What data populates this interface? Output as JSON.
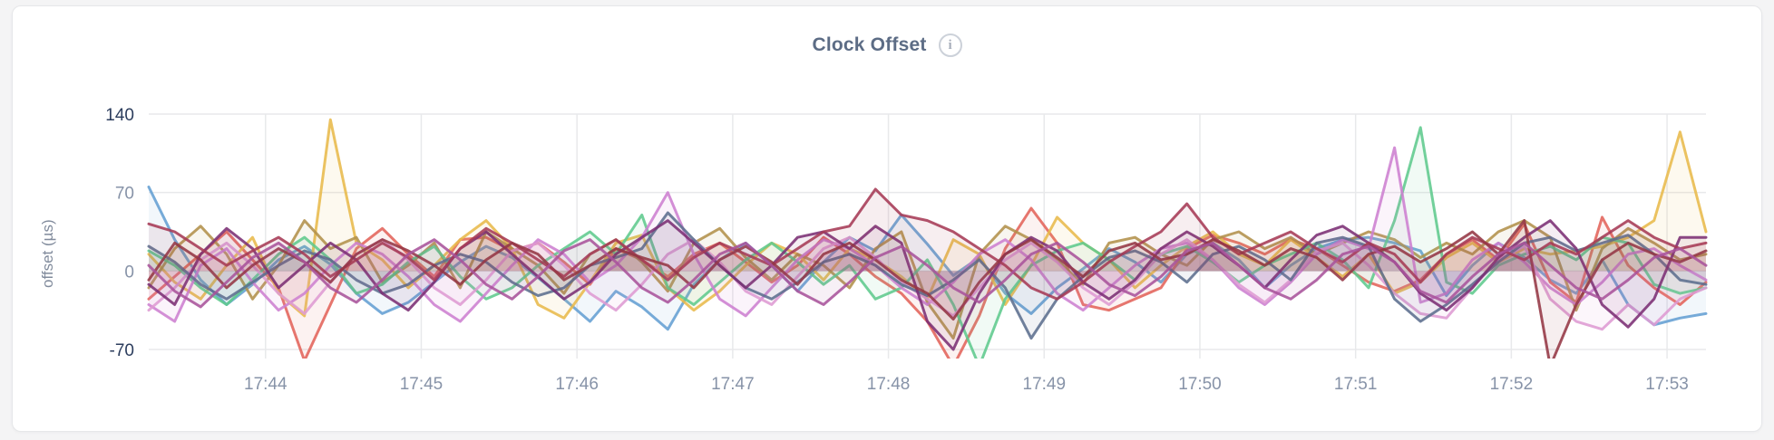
{
  "header": {
    "title": "Clock Offset",
    "info_icon_glyph": "i"
  },
  "style": {
    "accent_title_color": "#5c6c85",
    "grid_color": "#e8e9eb",
    "tick_strong_color": "#2c3d5d",
    "tick_muted_color": "#8793a8",
    "fill_opacity": 0.085,
    "line_opacity": 0.88,
    "line_width": 3
  },
  "chart_data": {
    "type": "line",
    "title": "Clock Offset",
    "xlabel": "",
    "ylabel": "offset (µs)",
    "ylim": [
      -70,
      140
    ],
    "y_ticks": [
      140,
      70,
      0,
      -70
    ],
    "x_ticks": [
      "17:44",
      "17:45",
      "17:46",
      "17:47",
      "17:48",
      "17:49",
      "17:50",
      "17:51",
      "17:52",
      "17:53"
    ],
    "x_start": "17:43:15",
    "x_end": "17:53:15",
    "sample_interval_seconds": 10,
    "grid": true,
    "legend_position": "none",
    "series": [
      {
        "name": "blue",
        "color": "#649fd3",
        "values": [
          75,
          28,
          -8,
          -30,
          -12,
          10,
          22,
          6,
          -20,
          -38,
          -28,
          -10,
          8,
          22,
          12,
          -6,
          -25,
          -45,
          -18,
          -32,
          -52,
          -12,
          10,
          25,
          5,
          -18,
          8,
          30,
          18,
          50,
          24,
          -4,
          12,
          -20,
          -38,
          -15,
          2,
          20,
          8,
          -10,
          15,
          25,
          10,
          -15,
          5,
          20,
          28,
          30,
          25,
          18,
          -22,
          5,
          25,
          12,
          -8,
          -20,
          10,
          -30,
          -48,
          -42,
          -38
        ]
      },
      {
        "name": "red",
        "color": "#e2635a",
        "values": [
          -25,
          -5,
          15,
          35,
          10,
          -15,
          -80,
          -30,
          20,
          38,
          15,
          -5,
          28,
          30,
          18,
          25,
          8,
          -12,
          20,
          10,
          -5,
          15,
          25,
          8,
          -10,
          5,
          30,
          15,
          -5,
          -20,
          -45,
          -85,
          -40,
          20,
          56,
          25,
          -30,
          -35,
          -25,
          -15,
          20,
          32,
          25,
          15,
          28,
          20,
          5,
          -10,
          -18,
          -8,
          15,
          28,
          10,
          42,
          -10,
          -28,
          48,
          5,
          -15,
          -30,
          -10
        ]
      },
      {
        "name": "gold",
        "color": "#e8ba4b",
        "values": [
          15,
          -10,
          -25,
          5,
          30,
          -20,
          -40,
          135,
          25,
          10,
          -15,
          5,
          28,
          45,
          20,
          -30,
          -42,
          -10,
          25,
          32,
          -15,
          -35,
          -18,
          5,
          25,
          15,
          -8,
          20,
          10,
          -5,
          -25,
          28,
          15,
          -30,
          5,
          48,
          25,
          10,
          -15,
          5,
          22,
          35,
          15,
          5,
          28,
          12,
          -5,
          15,
          -20,
          -10,
          12,
          25,
          8,
          20,
          15,
          18,
          22,
          30,
          45,
          124,
          35
        ]
      },
      {
        "name": "olive",
        "color": "#b2914b",
        "values": [
          -15,
          20,
          40,
          15,
          -25,
          5,
          45,
          20,
          30,
          -10,
          5,
          25,
          -15,
          35,
          20,
          5,
          -20,
          15,
          28,
          8,
          -18,
          25,
          38,
          12,
          -8,
          15,
          5,
          -15,
          20,
          35,
          -28,
          -60,
          15,
          40,
          28,
          10,
          -12,
          25,
          30,
          15,
          5,
          28,
          35,
          20,
          30,
          15,
          25,
          35,
          28,
          12,
          25,
          15,
          35,
          45,
          30,
          -35,
          20,
          38,
          25,
          10,
          15
        ]
      },
      {
        "name": "green",
        "color": "#5eca8d",
        "values": [
          18,
          5,
          -15,
          -30,
          -8,
          15,
          30,
          10,
          -20,
          -12,
          8,
          22,
          -5,
          -25,
          -15,
          5,
          20,
          35,
          15,
          50,
          -15,
          -30,
          -10,
          10,
          25,
          8,
          -12,
          5,
          -25,
          -15,
          10,
          -30,
          -85,
          -25,
          5,
          18,
          25,
          10,
          -8,
          15,
          22,
          8,
          -10,
          5,
          15,
          25,
          10,
          -15,
          45,
          128,
          -10,
          -20,
          5,
          15,
          22,
          10,
          30,
          25,
          -12,
          -20,
          -15
        ]
      },
      {
        "name": "orchid",
        "color": "#cd80d0",
        "values": [
          -30,
          -45,
          5,
          20,
          -10,
          -35,
          -20,
          5,
          25,
          15,
          -5,
          -30,
          -45,
          -20,
          5,
          28,
          15,
          -10,
          5,
          30,
          70,
          15,
          -25,
          -40,
          -15,
          10,
          28,
          20,
          5,
          -15,
          -30,
          -10,
          15,
          28,
          10,
          -20,
          -35,
          -15,
          5,
          20,
          25,
          10,
          -15,
          -30,
          -10,
          15,
          28,
          20,
          110,
          -28,
          -20,
          10,
          25,
          8,
          -15,
          -30,
          -10,
          15,
          20,
          5,
          -8
        ]
      },
      {
        "name": "pink",
        "color": "#de9bd3",
        "values": [
          -35,
          -15,
          10,
          25,
          5,
          -20,
          -38,
          -10,
          15,
          28,
          10,
          -15,
          -30,
          -8,
          18,
          25,
          5,
          -20,
          -35,
          -12,
          15,
          28,
          8,
          -18,
          -30,
          -5,
          20,
          30,
          12,
          -10,
          -25,
          -40,
          -15,
          10,
          25,
          8,
          -15,
          -30,
          -10,
          15,
          28,
          10,
          -12,
          -28,
          -8,
          18,
          25,
          5,
          -20,
          -38,
          -42,
          -15,
          10,
          22,
          -25,
          -45,
          -52,
          -30,
          -48,
          -25,
          -15
        ]
      },
      {
        "name": "slate",
        "color": "#5c6e8e",
        "values": [
          22,
          8,
          -12,
          -25,
          -10,
          5,
          18,
          10,
          -8,
          -20,
          -12,
          5,
          15,
          8,
          -10,
          -22,
          -15,
          5,
          12,
          20,
          52,
          28,
          5,
          -15,
          -25,
          -10,
          8,
          15,
          5,
          -12,
          -22,
          -8,
          10,
          -15,
          -60,
          -25,
          -5,
          12,
          18,
          8,
          -10,
          15,
          22,
          10,
          -8,
          25,
          30,
          22,
          -25,
          -45,
          -30,
          -12,
          8,
          25,
          30,
          18,
          25,
          32,
          15,
          -8,
          -12
        ]
      },
      {
        "name": "purple",
        "color": "#7b2f74",
        "values": [
          -12,
          -30,
          15,
          38,
          20,
          -15,
          5,
          25,
          10,
          -20,
          -35,
          -10,
          20,
          35,
          15,
          -5,
          -25,
          -10,
          15,
          30,
          45,
          25,
          5,
          -15,
          5,
          30,
          35,
          20,
          40,
          25,
          -45,
          -70,
          -20,
          15,
          30,
          18,
          -10,
          -25,
          -8,
          20,
          35,
          22,
          5,
          -15,
          10,
          32,
          40,
          25,
          8,
          -20,
          -35,
          -15,
          12,
          30,
          45,
          20,
          -30,
          -50,
          -25,
          30,
          30
        ]
      },
      {
        "name": "maroon",
        "color": "#a63a55",
        "values": [
          42,
          35,
          20,
          5,
          18,
          30,
          15,
          -5,
          10,
          25,
          12,
          -8,
          20,
          38,
          25,
          10,
          -5,
          15,
          28,
          10,
          -8,
          12,
          25,
          15,
          5,
          20,
          35,
          40,
          73,
          50,
          45,
          35,
          20,
          5,
          -15,
          -25,
          -10,
          8,
          22,
          35,
          60,
          30,
          15,
          25,
          35,
          20,
          8,
          25,
          15,
          -10,
          15,
          30,
          20,
          10,
          25,
          15,
          30,
          45,
          30,
          20,
          25
        ]
      },
      {
        "name": "burgundy",
        "color": "#943744",
        "values": [
          -8,
          25,
          10,
          -15,
          5,
          20,
          8,
          -10,
          15,
          28,
          18,
          5,
          -12,
          10,
          25,
          15,
          -8,
          5,
          20,
          12,
          5,
          -15,
          10,
          22,
          8,
          -12,
          15,
          25,
          10,
          -8,
          -20,
          -43,
          -10,
          15,
          28,
          12,
          -5,
          18,
          25,
          10,
          15,
          28,
          18,
          5,
          20,
          12,
          -8,
          15,
          22,
          8,
          20,
          35,
          15,
          45,
          -85,
          -30,
          10,
          25,
          15,
          8,
          18
        ]
      },
      {
        "name": "plum",
        "color": "#a8539b",
        "values": [
          5,
          -18,
          -32,
          -10,
          12,
          25,
          8,
          -15,
          -28,
          -8,
          15,
          28,
          10,
          -12,
          -25,
          -5,
          18,
          28,
          8,
          -15,
          -28,
          -8,
          15,
          25,
          5,
          -18,
          -30,
          -10,
          12,
          22,
          5,
          -15,
          -28,
          -8,
          15,
          25,
          8,
          -12,
          -22,
          -5,
          18,
          25,
          5,
          -15,
          -25,
          -8,
          15,
          22,
          8,
          -18,
          -28,
          -5,
          15,
          25,
          5,
          -15,
          -25,
          -8,
          12,
          20,
          5
        ]
      }
    ]
  }
}
